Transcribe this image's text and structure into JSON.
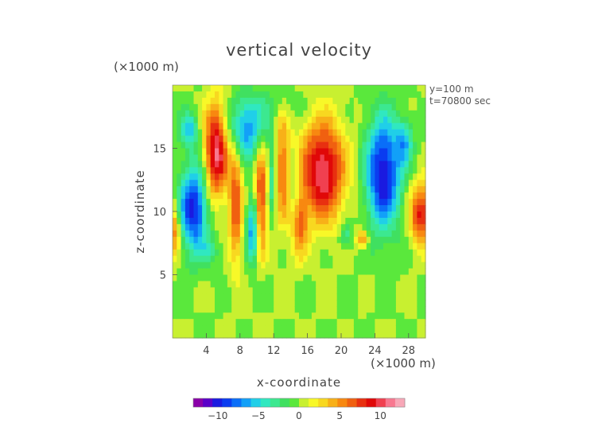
{
  "chart_data": {
    "type": "heatmap",
    "title": "vertical velocity",
    "xlabel": "x-coordinate",
    "ylabel": "z-coordinate",
    "x_unit": "(×1000 m)",
    "y_unit": "(×1000 m)",
    "annotations": [
      "y=100 m",
      "t=70800 sec"
    ],
    "xlim": [
      0,
      30
    ],
    "ylim": [
      0,
      20
    ],
    "x_ticks": [
      4,
      8,
      12,
      16,
      20,
      24,
      28
    ],
    "y_ticks": [
      5,
      10,
      15
    ],
    "x_tick_labels": [
      "4",
      "8",
      "12",
      "16",
      "20",
      "24",
      "28"
    ],
    "y_tick_labels": [
      "5",
      "10",
      "15"
    ],
    "colorbar": {
      "range": [
        -13,
        13
      ],
      "ticks": [
        -10,
        -5,
        0,
        5,
        10
      ],
      "tick_labels": [
        "−10",
        "−5",
        "0",
        "5",
        "10"
      ],
      "colors": [
        "#8a00a8",
        "#5a00c8",
        "#1a1ae0",
        "#0a3cf0",
        "#0a6ef8",
        "#12a0f8",
        "#20cfe8",
        "#30e8c0",
        "#3ce890",
        "#40e060",
        "#5ae83c",
        "#c8f030",
        "#f8f828",
        "#f8d820",
        "#f8b018",
        "#f88810",
        "#f06010",
        "#e83010",
        "#e00808",
        "#f04050",
        "#f87890",
        "#f8a8b8"
      ]
    },
    "features": [
      {
        "x": 5.2,
        "z": 14.8,
        "sx": 1.0,
        "sz": 2.6,
        "a": 11
      },
      {
        "x": 7.5,
        "z": 10.5,
        "sx": 0.55,
        "sz": 3.2,
        "a": 7
      },
      {
        "x": 10.5,
        "z": 11.0,
        "sx": 0.5,
        "sz": 3.0,
        "a": 8
      },
      {
        "x": 13.0,
        "z": 13.5,
        "sx": 0.6,
        "sz": 3.0,
        "a": 6
      },
      {
        "x": 17.8,
        "z": 13.2,
        "sx": 1.8,
        "sz": 2.7,
        "a": 11
      },
      {
        "x": 15.0,
        "z": 9.0,
        "sx": 0.7,
        "sz": 1.8,
        "a": 6
      },
      {
        "x": 22.5,
        "z": 7.8,
        "sx": 0.5,
        "sz": 0.5,
        "a": 6
      },
      {
        "x": 29.5,
        "z": 9.8,
        "sx": 0.9,
        "sz": 1.6,
        "a": 9
      },
      {
        "x": 0.2,
        "z": 8.5,
        "sx": 0.5,
        "sz": 1.5,
        "a": 6
      },
      {
        "x": 2.5,
        "z": 10.2,
        "sx": 1.2,
        "sz": 2.4,
        "a": -10
      },
      {
        "x": 8.8,
        "z": 16.5,
        "sx": 1.6,
        "sz": 1.6,
        "a": -7
      },
      {
        "x": 9.5,
        "z": 8.5,
        "sx": 0.5,
        "sz": 1.8,
        "a": -7
      },
      {
        "x": 11.8,
        "z": 12.5,
        "sx": 0.35,
        "sz": 2.0,
        "a": -4
      },
      {
        "x": 14.5,
        "z": 11.5,
        "sx": 0.4,
        "sz": 2.0,
        "a": -3
      },
      {
        "x": 20.5,
        "z": 8.0,
        "sx": 0.5,
        "sz": 0.7,
        "a": -4
      },
      {
        "x": 25.0,
        "z": 13.0,
        "sx": 1.4,
        "sz": 3.0,
        "a": -11
      },
      {
        "x": 27.5,
        "z": 15.5,
        "sx": 0.7,
        "sz": 1.2,
        "a": -5
      },
      {
        "x": 2.0,
        "z": 16.5,
        "sx": 0.8,
        "sz": 1.0,
        "a": -5
      },
      {
        "x": 4.5,
        "z": 6.8,
        "sx": 1.0,
        "sz": 0.8,
        "a": -2
      },
      {
        "x": 12.0,
        "z": 18.5,
        "sx": 2.5,
        "sz": 0.8,
        "a": -1.5
      }
    ]
  }
}
